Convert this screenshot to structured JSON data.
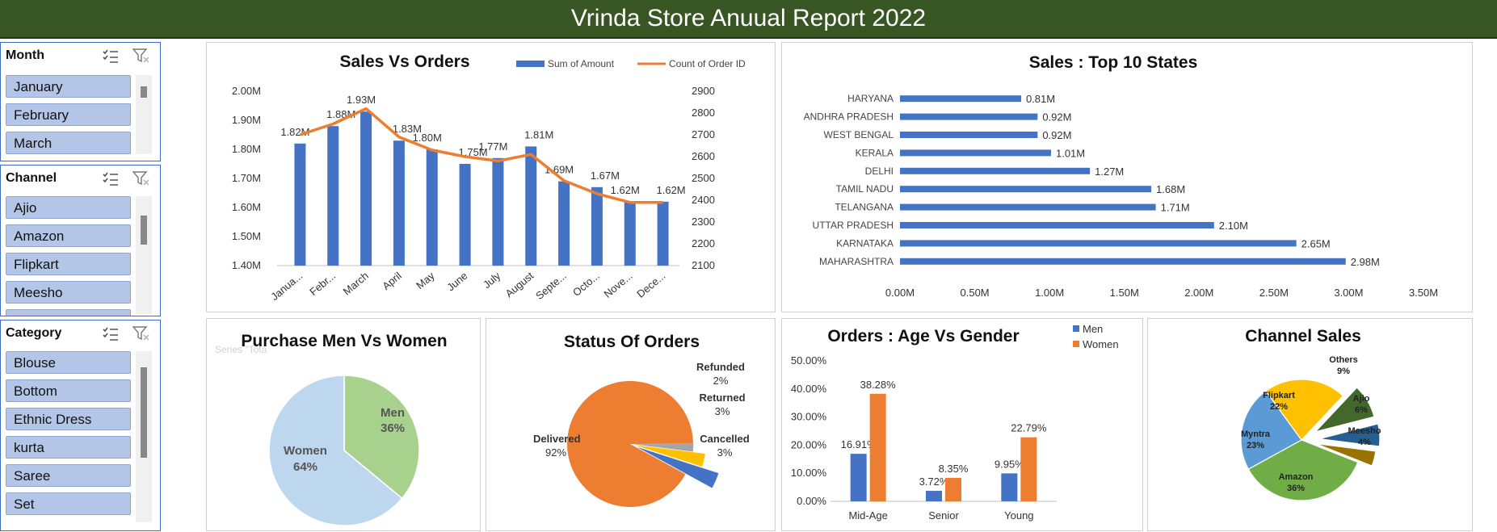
{
  "header": {
    "title": "Vrinda Store Anuual Report 2022"
  },
  "slicers": [
    {
      "title": "Month",
      "items": [
        "January",
        "February",
        "March"
      ]
    },
    {
      "title": "Channel",
      "items": [
        "Ajio",
        "Amazon",
        "Flipkart",
        "Meesho"
      ]
    },
    {
      "title": "Category",
      "items": [
        "Blouse",
        "Bottom",
        "Ethnic Dress",
        "kurta",
        "Saree",
        "Set"
      ]
    }
  ],
  "colors": {
    "blue": "#4472c4",
    "orange": "#ed7d31",
    "green": "#375623",
    "slicer_item": "#b4c6e7"
  },
  "chart_data": [
    {
      "type": "bar",
      "id": "sales-vs-orders",
      "title": "Sales Vs Orders",
      "categories": [
        "Janua...",
        "Febr...",
        "March",
        "April",
        "May",
        "June",
        "July",
        "August",
        "Septe...",
        "Octo...",
        "Nove...",
        "Dece..."
      ],
      "series": [
        {
          "name": "Sum of Amount",
          "type": "bar",
          "axis": "left",
          "values": [
            1.82,
            1.88,
            1.93,
            1.83,
            1.8,
            1.75,
            1.77,
            1.81,
            1.69,
            1.67,
            1.62,
            1.62
          ],
          "labels": [
            "1.82M",
            "1.88M",
            "1.93M",
            "1.83M",
            "1.80M",
            "1.75M",
            "1.77M",
            "1.81M",
            "1.69M",
            "1.67M",
            "1.62M",
            "1.62M"
          ]
        },
        {
          "name": "Count of Order ID",
          "type": "line",
          "axis": "right",
          "values": [
            2700,
            2750,
            2820,
            2690,
            2630,
            2600,
            2580,
            2610,
            2490,
            2430,
            2390,
            2390
          ]
        }
      ],
      "ylim_left": [
        1.4,
        2.0
      ],
      "yticks_left": [
        "1.40M",
        "1.50M",
        "1.60M",
        "1.70M",
        "1.80M",
        "1.90M",
        "2.00M"
      ],
      "ylim_right": [
        2100,
        2900
      ],
      "yticks_right": [
        "2100",
        "2200",
        "2300",
        "2400",
        "2500",
        "2600",
        "2700",
        "2800",
        "2900"
      ],
      "legend": "top-right"
    },
    {
      "type": "bar",
      "orientation": "horizontal",
      "id": "top-states",
      "title": "Sales : Top 10 States",
      "categories": [
        "HARYANA",
        "ANDHRA PRADESH",
        "WEST BENGAL",
        "KERALA",
        "DELHI",
        "TAMIL NADU",
        "TELANGANA",
        "UTTAR PRADESH",
        "KARNATAKA",
        "MAHARASHTRA"
      ],
      "values": [
        0.81,
        0.92,
        0.92,
        1.01,
        1.27,
        1.68,
        1.71,
        2.1,
        2.65,
        2.98
      ],
      "labels": [
        "0.81M",
        "0.92M",
        "0.92M",
        "1.01M",
        "1.27M",
        "1.68M",
        "1.71M",
        "2.10M",
        "2.65M",
        "2.98M"
      ],
      "xlim": [
        0,
        3.5
      ],
      "xticks": [
        "0.00M",
        "0.50M",
        "1.00M",
        "1.50M",
        "2.00M",
        "2.50M",
        "3.00M",
        "3.50M"
      ]
    },
    {
      "type": "pie",
      "id": "men-vs-women",
      "title": "Purchase Men Vs Women",
      "faded_label": "Series \"Tota",
      "slices": [
        {
          "name": "Men",
          "value": 36,
          "label": "36%",
          "color": "#a9d18e"
        },
        {
          "name": "Women",
          "value": 64,
          "label": "64%",
          "color": "#bdd7ee"
        }
      ]
    },
    {
      "type": "pie",
      "id": "status-of-orders",
      "title": "Status Of Orders",
      "slices": [
        {
          "name": "Delivered",
          "value": 92,
          "label": "92%",
          "color": "#ed7d31"
        },
        {
          "name": "Cancelled",
          "value": 3,
          "label": "3%",
          "color": "#4472c4"
        },
        {
          "name": "Returned",
          "value": 3,
          "label": "3%",
          "color": "#ffc000"
        },
        {
          "name": "Refunded",
          "value": 2,
          "label": "2%",
          "color": "#a5a5a5"
        }
      ]
    },
    {
      "type": "bar",
      "id": "age-vs-gender",
      "title": "Orders : Age Vs Gender",
      "categories": [
        "Mid-Age",
        "Senior",
        "Young"
      ],
      "series": [
        {
          "name": "Men",
          "values": [
            16.91,
            3.72,
            9.95
          ],
          "labels": [
            "16.91%",
            "3.72%",
            "9.95%"
          ],
          "color": "#4472c4"
        },
        {
          "name": "Women",
          "values": [
            38.28,
            8.35,
            22.79
          ],
          "labels": [
            "38.28%",
            "8.35%",
            "22.79%"
          ],
          "color": "#ed7d31"
        }
      ],
      "ylim": [
        0,
        50
      ],
      "yticks": [
        "0.00%",
        "10.00%",
        "20.00%",
        "30.00%",
        "40.00%",
        "50.00%"
      ],
      "legend": "top-right"
    },
    {
      "type": "pie",
      "id": "channel-sales",
      "title": "Channel Sales",
      "slices": [
        {
          "name": "Amazon",
          "value": 36,
          "label": "36%",
          "color": "#70ad47"
        },
        {
          "name": "Myntra",
          "value": 23,
          "label": "23%",
          "color": "#5b9bd5"
        },
        {
          "name": "Flipkart",
          "value": 22,
          "label": "22%",
          "color": "#ffc000"
        },
        {
          "name": "Others",
          "value": 9,
          "label": "9%",
          "color": "#43682b"
        },
        {
          "name": "Ajio",
          "value": 6,
          "label": "6%",
          "color": "#255e91"
        },
        {
          "name": "Meesho",
          "value": 4,
          "label": "4%",
          "color": "#997300"
        }
      ]
    }
  ]
}
